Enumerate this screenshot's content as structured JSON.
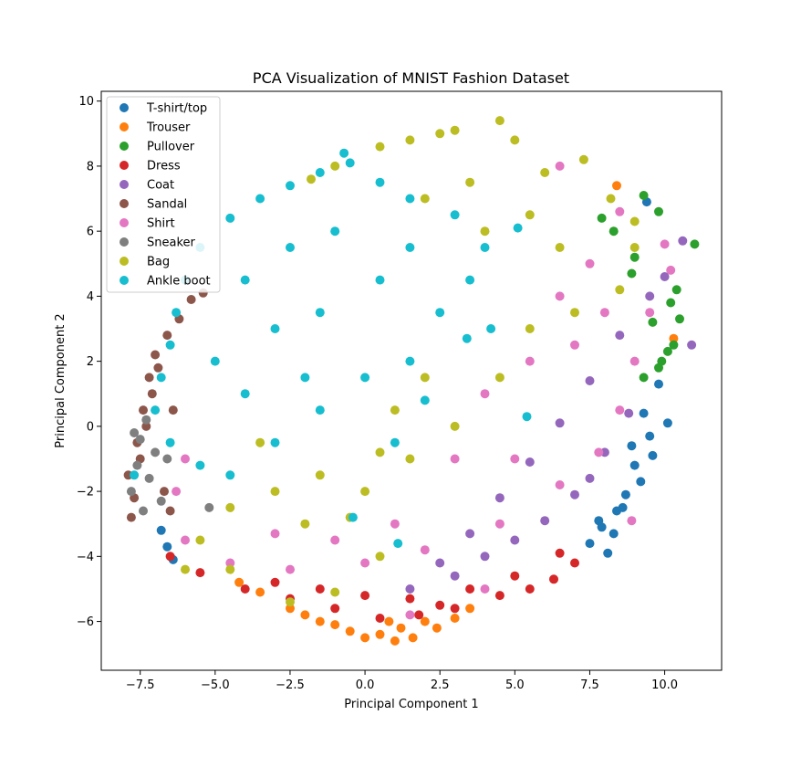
{
  "chart_data": {
    "type": "scatter",
    "title": "PCA Visualization of MNIST Fashion Dataset",
    "xlabel": "Principal Component 1",
    "ylabel": "Principal Component 2",
    "xlim": [
      -8.8,
      11.9
    ],
    "ylim": [
      -7.5,
      10.3
    ],
    "xticks": [
      -7.5,
      -5.0,
      -2.5,
      0.0,
      2.5,
      5.0,
      7.5,
      10.0
    ],
    "xtick_labels": [
      "−7.5",
      "−5.0",
      "−2.5",
      "0.0",
      "2.5",
      "5.0",
      "7.5",
      "10.0"
    ],
    "yticks": [
      -6,
      -4,
      -2,
      0,
      2,
      4,
      6,
      8,
      10
    ],
    "ytick_labels": [
      "−6",
      "−4",
      "−2",
      "0",
      "2",
      "4",
      "6",
      "8",
      "10"
    ],
    "grid": false,
    "legend_position": "upper-left",
    "series": [
      {
        "name": "T-shirt/top",
        "color": "#1f77b4",
        "points": [
          [
            9.4,
            6.9
          ],
          [
            9.8,
            1.3
          ],
          [
            10.1,
            0.1
          ],
          [
            9.6,
            -0.9
          ],
          [
            9.2,
            -1.7
          ],
          [
            8.6,
            -2.5
          ],
          [
            8.1,
            -3.9
          ],
          [
            7.5,
            -3.6
          ],
          [
            7.8,
            -2.9
          ],
          [
            8.9,
            -0.6
          ],
          [
            9.3,
            0.4
          ],
          [
            8.7,
            -2.1
          ],
          [
            -6.6,
            -3.7
          ],
          [
            -6.4,
            -4.1
          ],
          [
            -6.8,
            -3.2
          ],
          [
            9.0,
            -1.2
          ],
          [
            8.3,
            -3.3
          ],
          [
            7.9,
            -3.1
          ],
          [
            9.5,
            -0.3
          ],
          [
            8.4,
            -2.6
          ]
        ]
      },
      {
        "name": "Trouser",
        "color": "#ff7f0e",
        "points": [
          [
            8.4,
            7.4
          ],
          [
            10.3,
            2.7
          ],
          [
            1.0,
            -6.6
          ],
          [
            0.5,
            -6.4
          ],
          [
            1.6,
            -6.5
          ],
          [
            -0.5,
            -6.3
          ],
          [
            -1.5,
            -6.0
          ],
          [
            -2.5,
            -5.6
          ],
          [
            2.4,
            -6.2
          ],
          [
            3.0,
            -5.9
          ],
          [
            0.0,
            -6.5
          ],
          [
            -3.5,
            -5.1
          ],
          [
            1.2,
            -6.2
          ],
          [
            2.0,
            -6.0
          ],
          [
            -1.0,
            -6.1
          ],
          [
            -2.0,
            -5.8
          ],
          [
            0.8,
            -6.0
          ],
          [
            -4.2,
            -4.8
          ],
          [
            3.5,
            -5.6
          ]
        ]
      },
      {
        "name": "Pullover",
        "color": "#2ca02c",
        "points": [
          [
            11.0,
            5.6
          ],
          [
            9.8,
            6.6
          ],
          [
            9.3,
            7.1
          ],
          [
            10.4,
            4.2
          ],
          [
            10.5,
            3.3
          ],
          [
            10.3,
            2.5
          ],
          [
            10.1,
            2.3
          ],
          [
            9.8,
            1.8
          ],
          [
            9.3,
            1.5
          ],
          [
            10.2,
            3.8
          ],
          [
            9.9,
            2.0
          ],
          [
            9.6,
            3.2
          ],
          [
            8.9,
            4.7
          ],
          [
            8.3,
            6.0
          ],
          [
            7.9,
            6.4
          ],
          [
            9.0,
            5.2
          ]
        ]
      },
      {
        "name": "Dress",
        "color": "#d62728",
        "points": [
          [
            -6.5,
            -4.0
          ],
          [
            -5.5,
            -4.5
          ],
          [
            -4.0,
            -5.0
          ],
          [
            -2.5,
            -5.3
          ],
          [
            -1.0,
            -5.6
          ],
          [
            0.5,
            -5.9
          ],
          [
            1.8,
            -5.8
          ],
          [
            3.0,
            -5.6
          ],
          [
            4.5,
            -5.2
          ],
          [
            5.5,
            -5.0
          ],
          [
            6.3,
            -4.7
          ],
          [
            7.0,
            -4.2
          ],
          [
            -3.0,
            -4.8
          ],
          [
            -1.5,
            -5.0
          ],
          [
            0.0,
            -5.2
          ],
          [
            1.5,
            -5.3
          ],
          [
            3.5,
            -5.0
          ],
          [
            5.0,
            -4.6
          ],
          [
            6.5,
            -3.9
          ],
          [
            2.5,
            -5.5
          ]
        ]
      },
      {
        "name": "Coat",
        "color": "#9467bd",
        "points": [
          [
            10.6,
            5.7
          ],
          [
            10.9,
            2.5
          ],
          [
            10.0,
            4.6
          ],
          [
            9.5,
            4.0
          ],
          [
            8.5,
            2.8
          ],
          [
            7.5,
            1.4
          ],
          [
            6.5,
            0.1
          ],
          [
            5.5,
            -1.1
          ],
          [
            4.5,
            -2.2
          ],
          [
            3.5,
            -3.3
          ],
          [
            2.5,
            -4.2
          ],
          [
            1.5,
            -5.0
          ],
          [
            6.0,
            -2.9
          ],
          [
            7.0,
            -2.1
          ],
          [
            8.0,
            -0.8
          ],
          [
            8.8,
            0.4
          ],
          [
            3.0,
            -4.6
          ],
          [
            4.0,
            -4.0
          ],
          [
            5.0,
            -3.5
          ],
          [
            7.5,
            -1.6
          ]
        ]
      },
      {
        "name": "Sandal",
        "color": "#8c564b",
        "points": [
          [
            -7.8,
            -2.8
          ],
          [
            -7.9,
            -1.5
          ],
          [
            -7.6,
            -0.5
          ],
          [
            -7.4,
            0.5
          ],
          [
            -7.2,
            1.5
          ],
          [
            -7.0,
            2.2
          ],
          [
            -6.6,
            2.8
          ],
          [
            -6.2,
            3.3
          ],
          [
            -5.8,
            3.9
          ],
          [
            -5.4,
            4.1
          ],
          [
            -7.7,
            -2.2
          ],
          [
            -7.5,
            -1.0
          ],
          [
            -7.3,
            0.0
          ],
          [
            -7.1,
            1.0
          ],
          [
            -6.9,
            1.8
          ],
          [
            -6.5,
            -2.6
          ],
          [
            -6.7,
            -2.0
          ],
          [
            -6.4,
            0.5
          ]
        ]
      },
      {
        "name": "Shirt",
        "color": "#e377c2",
        "points": [
          [
            6.5,
            8.0
          ],
          [
            8.5,
            6.6
          ],
          [
            10.0,
            5.6
          ],
          [
            10.2,
            4.8
          ],
          [
            9.5,
            3.5
          ],
          [
            9.0,
            2.0
          ],
          [
            8.5,
            0.5
          ],
          [
            7.8,
            -0.8
          ],
          [
            6.5,
            -1.8
          ],
          [
            4.5,
            -3.0
          ],
          [
            2.0,
            -3.8
          ],
          [
            0.0,
            -4.2
          ],
          [
            -2.5,
            -4.4
          ],
          [
            -4.5,
            -4.2
          ],
          [
            -6.0,
            -3.5
          ],
          [
            -6.3,
            -2.0
          ],
          [
            -6.0,
            -1.0
          ],
          [
            5.5,
            2.0
          ],
          [
            6.5,
            4.0
          ],
          [
            7.5,
            5.0
          ],
          [
            4.0,
            1.0
          ],
          [
            3.0,
            -1.0
          ],
          [
            5.0,
            -1.0
          ],
          [
            1.0,
            -3.0
          ],
          [
            -1.0,
            -3.5
          ],
          [
            -3.0,
            -3.3
          ],
          [
            7.0,
            2.5
          ],
          [
            8.0,
            3.5
          ],
          [
            8.9,
            -2.9
          ],
          [
            4.0,
            -5.0
          ],
          [
            1.5,
            -5.8
          ]
        ]
      },
      {
        "name": "Sneaker",
        "color": "#7f7f7f",
        "points": [
          [
            -7.8,
            -2.0
          ],
          [
            -7.6,
            -1.2
          ],
          [
            -7.5,
            -0.4
          ],
          [
            -7.3,
            0.2
          ],
          [
            -7.0,
            -0.8
          ],
          [
            -7.2,
            -1.6
          ],
          [
            -6.8,
            -2.3
          ],
          [
            -6.6,
            -1.0
          ],
          [
            -5.2,
            -2.5
          ],
          [
            -7.7,
            -0.2
          ],
          [
            -7.4,
            -2.6
          ]
        ]
      },
      {
        "name": "Bag",
        "color": "#bcbd22",
        "points": [
          [
            4.5,
            9.4
          ],
          [
            3.0,
            9.1
          ],
          [
            2.5,
            9.0
          ],
          [
            1.5,
            8.8
          ],
          [
            0.5,
            8.6
          ],
          [
            -1.0,
            8.0
          ],
          [
            -1.8,
            7.6
          ],
          [
            5.0,
            8.8
          ],
          [
            6.0,
            7.8
          ],
          [
            7.3,
            8.2
          ],
          [
            8.2,
            7.0
          ],
          [
            9.0,
            6.3
          ],
          [
            9.0,
            5.5
          ],
          [
            8.5,
            4.2
          ],
          [
            7.0,
            3.5
          ],
          [
            5.5,
            3.0
          ],
          [
            4.5,
            1.5
          ],
          [
            3.0,
            0.0
          ],
          [
            1.5,
            -1.0
          ],
          [
            0.0,
            -2.0
          ],
          [
            -1.5,
            -1.5
          ],
          [
            -3.0,
            -2.0
          ],
          [
            -4.5,
            -2.5
          ],
          [
            -5.5,
            -3.5
          ],
          [
            -6.0,
            -4.4
          ],
          [
            -4.5,
            -4.4
          ],
          [
            -2.5,
            -5.4
          ],
          [
            -1.0,
            -5.1
          ],
          [
            0.5,
            -4.0
          ],
          [
            3.5,
            7.5
          ],
          [
            2.0,
            7.0
          ],
          [
            5.5,
            6.5
          ],
          [
            6.5,
            5.5
          ],
          [
            4.0,
            6.0
          ],
          [
            -2.0,
            -3.0
          ],
          [
            1.0,
            0.5
          ],
          [
            -3.5,
            -0.5
          ],
          [
            2.0,
            1.5
          ],
          [
            0.5,
            -0.8
          ],
          [
            -0.5,
            -2.8
          ]
        ]
      },
      {
        "name": "Ankle boot",
        "color": "#17becf",
        "points": [
          [
            -0.7,
            8.4
          ],
          [
            -0.5,
            8.1
          ],
          [
            -1.5,
            7.8
          ],
          [
            -2.5,
            7.4
          ],
          [
            -3.5,
            7.0
          ],
          [
            -4.5,
            6.4
          ],
          [
            -5.5,
            5.5
          ],
          [
            -6.0,
            4.5
          ],
          [
            -6.3,
            3.5
          ],
          [
            -6.5,
            2.5
          ],
          [
            -6.8,
            1.5
          ],
          [
            -7.0,
            0.5
          ],
          [
            -6.5,
            -0.5
          ],
          [
            -5.5,
            -1.2
          ],
          [
            -4.5,
            -1.5
          ],
          [
            -3.0,
            -0.5
          ],
          [
            -1.5,
            0.5
          ],
          [
            0.0,
            1.5
          ],
          [
            1.5,
            2.0
          ],
          [
            2.5,
            3.5
          ],
          [
            3.5,
            4.5
          ],
          [
            4.0,
            5.5
          ],
          [
            3.0,
            6.5
          ],
          [
            1.5,
            7.0
          ],
          [
            0.5,
            7.5
          ],
          [
            -1.0,
            6.0
          ],
          [
            -2.5,
            5.5
          ],
          [
            -4.0,
            4.5
          ],
          [
            -3.0,
            3.0
          ],
          [
            -1.5,
            3.5
          ],
          [
            0.5,
            4.5
          ],
          [
            1.5,
            5.5
          ],
          [
            -5.0,
            2.0
          ],
          [
            -4.0,
            1.0
          ],
          [
            -2.0,
            1.5
          ],
          [
            1.0,
            -0.5
          ],
          [
            2.0,
            0.8
          ],
          [
            4.2,
            3.0
          ],
          [
            5.1,
            6.1
          ],
          [
            3.4,
            2.7
          ],
          [
            -0.4,
            -2.8
          ],
          [
            -7.7,
            -1.5
          ],
          [
            1.1,
            -3.6
          ],
          [
            5.4,
            0.3
          ]
        ]
      }
    ]
  }
}
